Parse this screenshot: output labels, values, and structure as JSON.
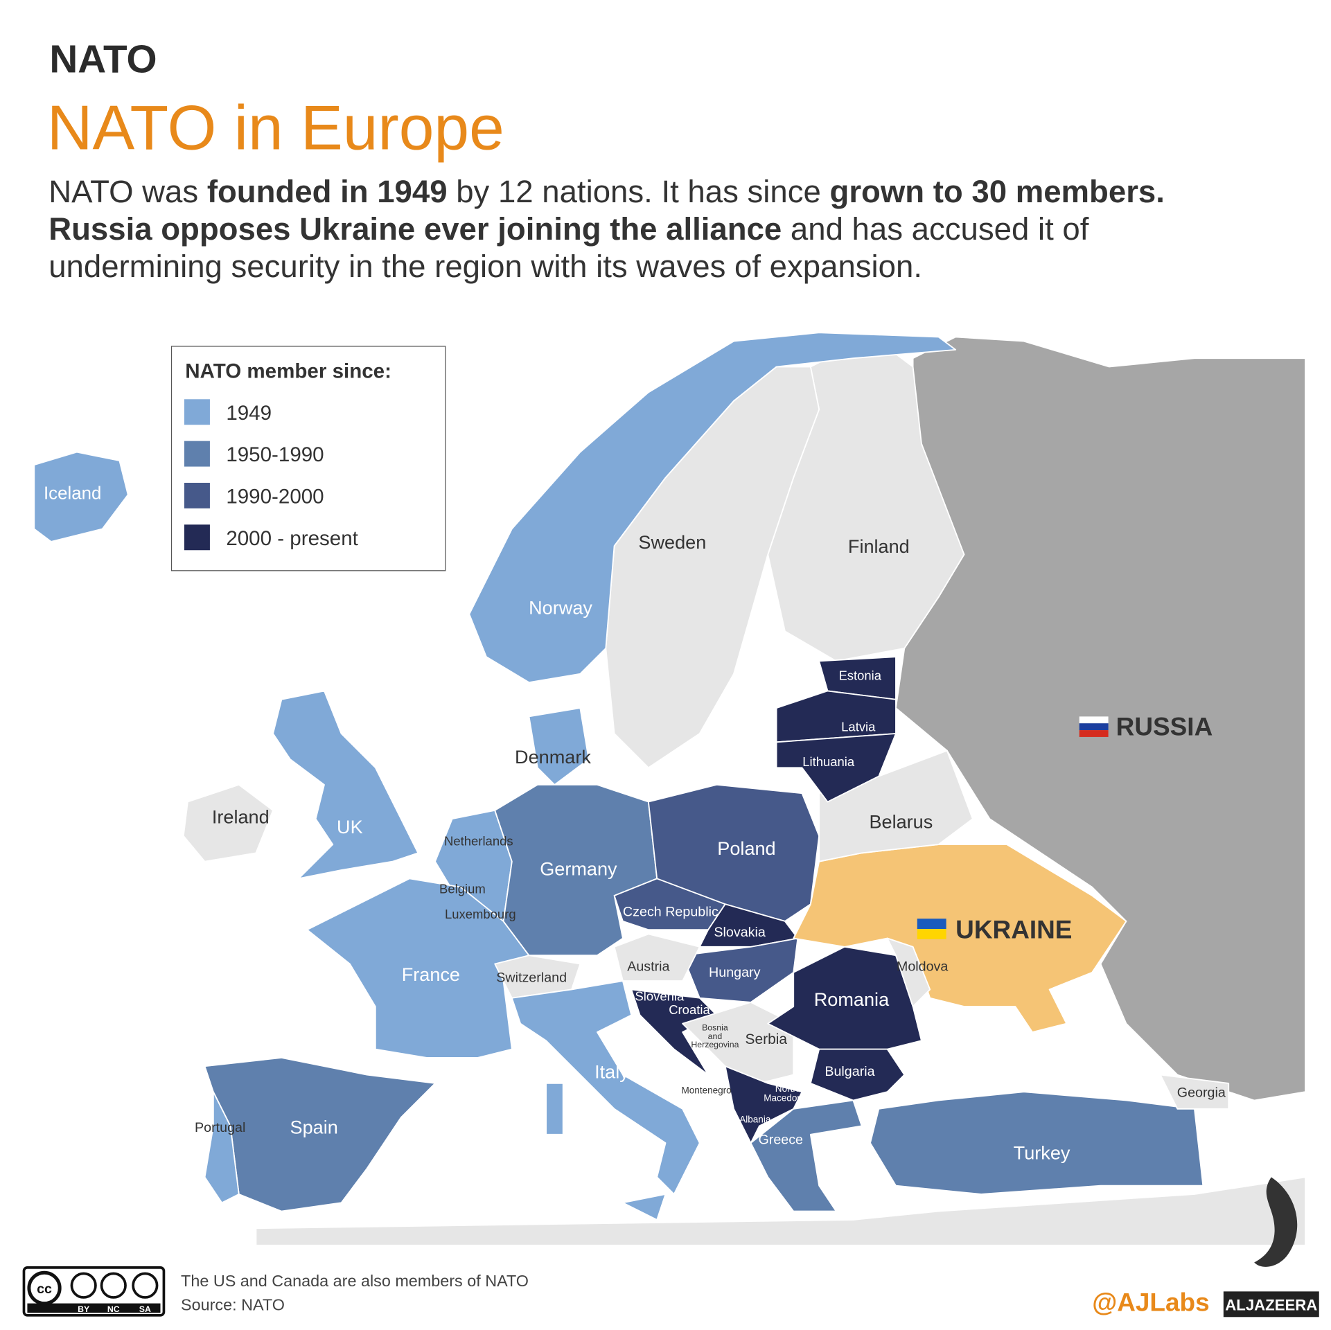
{
  "header": {
    "section": "NATO",
    "title": "NATO in Europe",
    "description": [
      [
        {
          "text": "NATO was ",
          "bold": false
        },
        {
          "text": "founded in 1949",
          "bold": true
        },
        {
          "text": " by 12 nations. It has since ",
          "bold": false
        },
        {
          "text": "grown to 30 members.",
          "bold": true
        }
      ],
      [
        {
          "text": "Russia opposes Ukraine ever joining the alliance",
          "bold": true
        },
        {
          "text": " and has accused it of",
          "bold": false
        }
      ],
      [
        {
          "text": "undermining security in the region with its waves of expansion.",
          "bold": false
        }
      ]
    ]
  },
  "legend": {
    "title": "NATO member since:",
    "items": [
      {
        "label": "1949",
        "color": "#80a9d7"
      },
      {
        "label": "1950-1990",
        "color": "#5f80ad"
      },
      {
        "label": "1990-2000",
        "color": "#46598a"
      },
      {
        "label": "2000 - present",
        "color": "#232a55"
      }
    ]
  },
  "map": {
    "labels": [
      [
        "Iceland"
      ],
      [
        "Sweden"
      ],
      [
        "Finland"
      ],
      [
        "Norway"
      ],
      [
        "Estonia"
      ],
      [
        "Latvia"
      ],
      [
        "Lithuania"
      ],
      [
        "RUSSIA"
      ],
      [
        "Denmark"
      ],
      [
        "Ireland"
      ],
      [
        "UK"
      ],
      [
        "Belarus"
      ],
      [
        "Netherlands"
      ],
      [
        "Poland"
      ],
      [
        "Germany"
      ],
      [
        "Belgium"
      ],
      [
        "Czech Republic"
      ],
      [
        "Luxembourg"
      ],
      [
        "Slovakia"
      ],
      [
        "UKRAINE"
      ],
      [
        "Austria"
      ],
      [
        "Moldova"
      ],
      [
        "France"
      ],
      [
        "Switzerland"
      ],
      [
        "Hungary"
      ],
      [
        "Slovenia"
      ],
      [
        "Romania"
      ],
      [
        "Croatia"
      ],
      [
        "Bosnia",
        "and",
        "Herzegovina"
      ],
      [
        "Serbia"
      ],
      [
        "Bulgaria"
      ],
      [
        "Italy"
      ],
      [
        "Montenegro"
      ],
      [
        "North",
        "Macedonia"
      ],
      [
        "Georgia"
      ],
      [
        "Albania"
      ],
      [
        "Portugal"
      ],
      [
        "Spain"
      ],
      [
        "Greece"
      ],
      [
        "Turkey"
      ]
    ]
  },
  "footer": {
    "note": "The US and Canada are also members of NATO",
    "source": "Source: NATO",
    "license": [
      "cc",
      "BY",
      "NC",
      "SA"
    ],
    "handle": "@AJLabs",
    "brand": "ALJAZEERA"
  }
}
